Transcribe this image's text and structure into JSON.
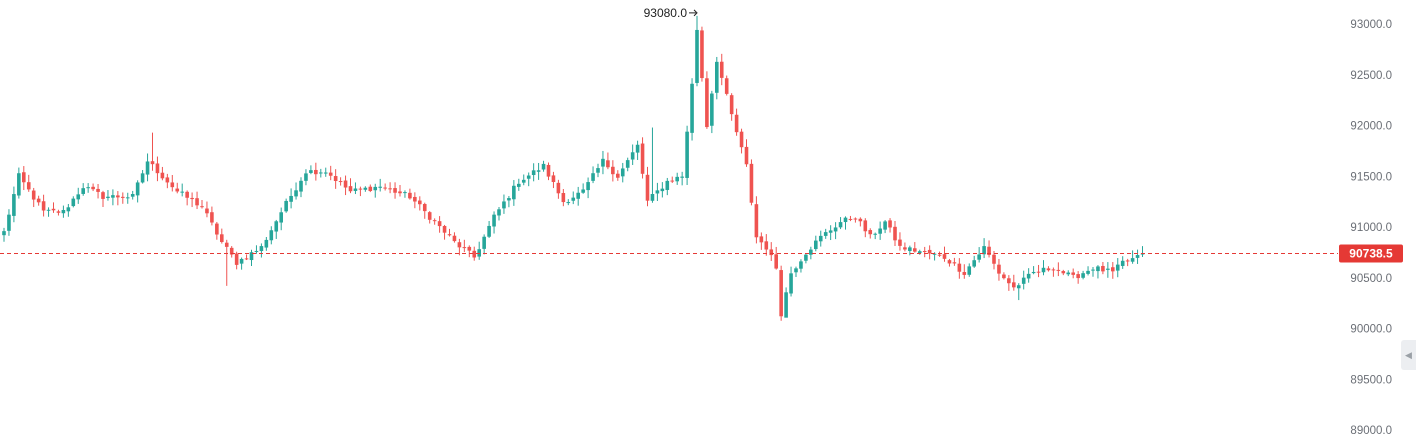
{
  "chart_data": {
    "type": "candlestick",
    "ylim": [
      89000,
      93200
    ],
    "y_ticks": [
      "93000.0",
      "92500.0",
      "92000.0",
      "91500.0",
      "91000.0",
      "90500.0",
      "90000.0",
      "89500.0",
      "89000.0"
    ],
    "current_price": "90738.5",
    "current_price_value": 90738.5,
    "peak_label": "93080.0",
    "peak_value": 93080.0,
    "peak_index": 140,
    "colors": {
      "up": "#26a69a",
      "down": "#ef5350",
      "price_line": "#e53935",
      "axis_text": "#6b6f76"
    },
    "anchor_closes": [
      [
        0,
        90950
      ],
      [
        3,
        91500
      ],
      [
        8,
        91150
      ],
      [
        12,
        91150
      ],
      [
        16,
        91400
      ],
      [
        20,
        91300
      ],
      [
        26,
        91300
      ],
      [
        29,
        91650
      ],
      [
        35,
        91350
      ],
      [
        40,
        91200
      ],
      [
        44,
        90850
      ],
      [
        47,
        90650
      ],
      [
        52,
        90800
      ],
      [
        56,
        91150
      ],
      [
        61,
        91550
      ],
      [
        65,
        91550
      ],
      [
        70,
        91350
      ],
      [
        76,
        91400
      ],
      [
        82,
        91300
      ],
      [
        87,
        91050
      ],
      [
        91,
        90850
      ],
      [
        95,
        90700
      ],
      [
        99,
        91100
      ],
      [
        104,
        91450
      ],
      [
        109,
        91600
      ],
      [
        113,
        91250
      ],
      [
        117,
        91350
      ],
      [
        121,
        91650
      ],
      [
        124,
        91500
      ],
      [
        128,
        91800
      ],
      [
        130,
        91250
      ],
      [
        134,
        91450
      ],
      [
        137,
        91500
      ],
      [
        139,
        92400
      ],
      [
        140,
        92950
      ],
      [
        142,
        92000
      ],
      [
        144,
        92650
      ],
      [
        147,
        92100
      ],
      [
        150,
        91600
      ],
      [
        152,
        90900
      ],
      [
        154,
        90800
      ],
      [
        156,
        90600
      ],
      [
        157,
        90150
      ],
      [
        159,
        90550
      ],
      [
        162,
        90750
      ],
      [
        165,
        90900
      ],
      [
        169,
        91050
      ],
      [
        172,
        91100
      ],
      [
        175,
        90900
      ],
      [
        178,
        91050
      ],
      [
        181,
        90800
      ],
      [
        186,
        90750
      ],
      [
        190,
        90700
      ],
      [
        194,
        90550
      ],
      [
        198,
        90800
      ],
      [
        201,
        90550
      ],
      [
        204,
        90400
      ],
      [
        208,
        90550
      ],
      [
        212,
        90600
      ],
      [
        216,
        90500
      ],
      [
        220,
        90600
      ],
      [
        224,
        90550
      ],
      [
        226,
        90650
      ],
      [
        229,
        90700
      ],
      [
        230,
        90738.5
      ]
    ]
  },
  "ui": {
    "scroll_handle_icon": "chevron-left-icon",
    "scroll_handle_glyph": "◀"
  }
}
